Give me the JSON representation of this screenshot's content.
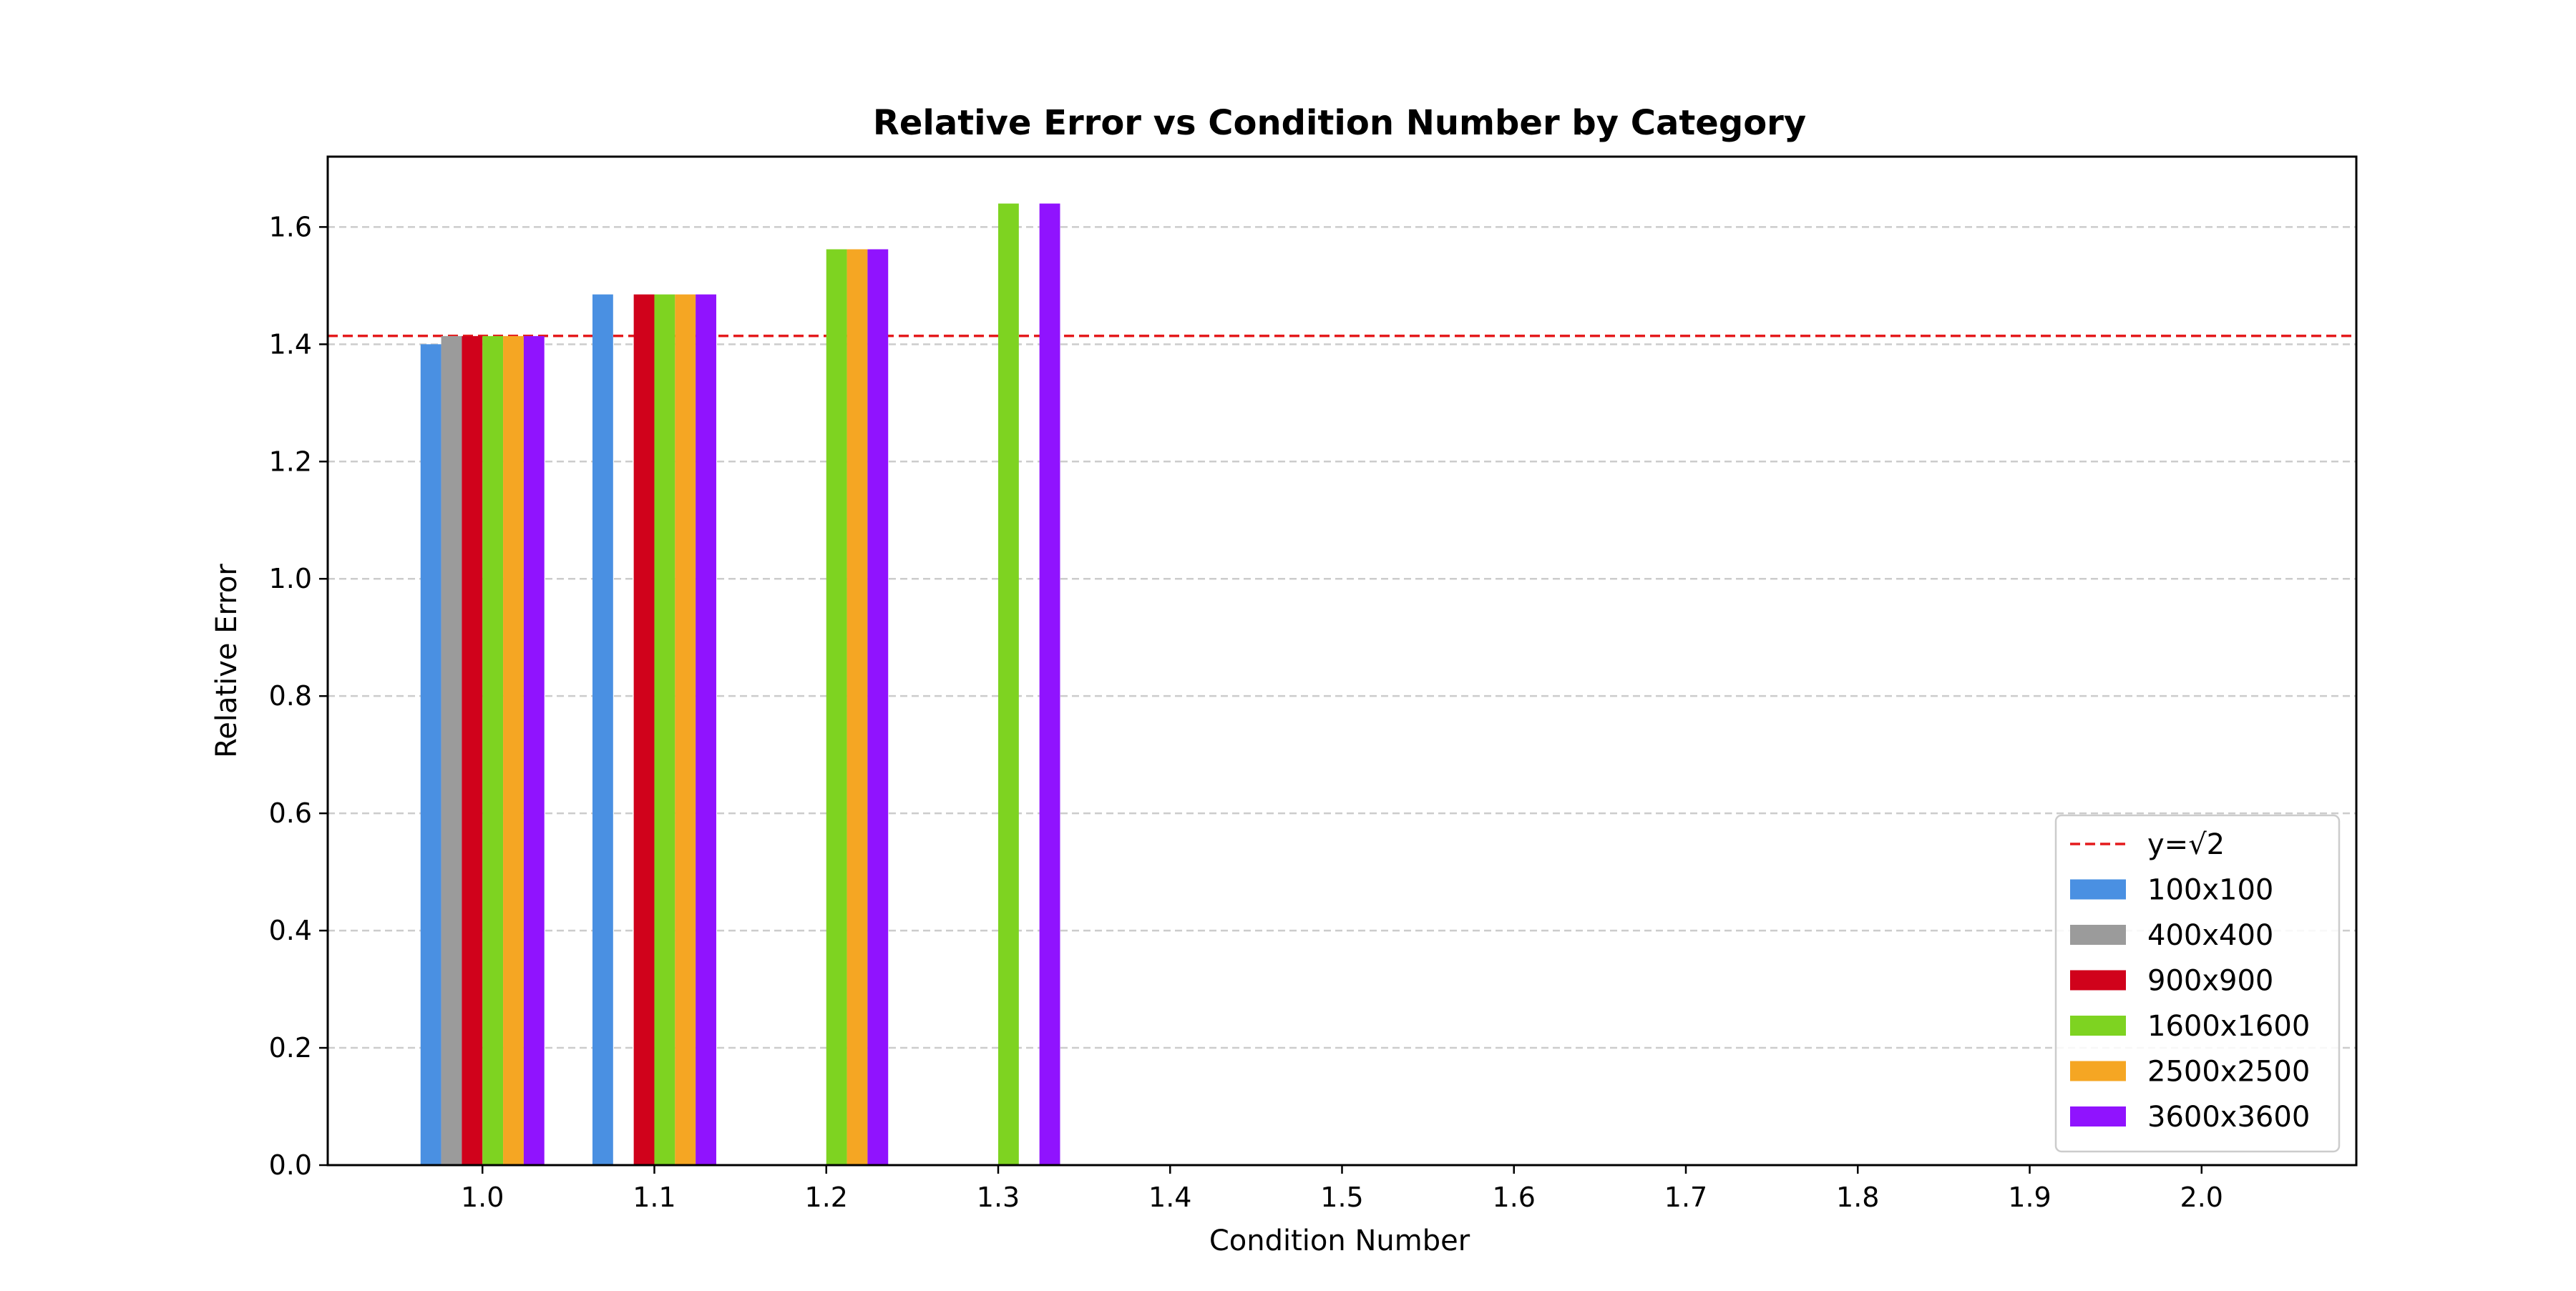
{
  "chart_data": {
    "type": "bar",
    "title": "Relative Error vs Condition Number by Category",
    "xlabel": "Condition Number",
    "ylabel": "Relative Error",
    "xlim": [
      0.91,
      2.09
    ],
    "ylim": [
      0.0,
      1.72
    ],
    "xticks": [
      "1.0",
      "1.1",
      "1.2",
      "1.3",
      "1.4",
      "1.5",
      "1.6",
      "1.7",
      "1.8",
      "1.9",
      "2.0"
    ],
    "yticks": [
      "0.0",
      "0.2",
      "0.4",
      "0.6",
      "0.8",
      "1.0",
      "1.2",
      "1.4",
      "1.6"
    ],
    "grid": "horizontal dashed",
    "legend_position": "lower-right",
    "bar_group_width": 0.072,
    "reference_line": {
      "label": "y=√2",
      "value": 1.4142,
      "color": "#e41a1c",
      "style": "dashed"
    },
    "series": [
      {
        "name": "100x100",
        "color": "#4a90e2",
        "x": [
          1.0,
          1.1
        ],
        "values": [
          1.4,
          1.485
        ]
      },
      {
        "name": "400x400",
        "color": "#9b9b9b",
        "x": [
          1.0
        ],
        "values": [
          1.414
        ]
      },
      {
        "name": "900x900",
        "color": "#d0021b",
        "x": [
          1.0,
          1.1
        ],
        "values": [
          1.414,
          1.485
        ]
      },
      {
        "name": "1600x1600",
        "color": "#7ed321",
        "x": [
          1.0,
          1.1,
          1.2,
          1.3
        ],
        "values": [
          1.414,
          1.485,
          1.562,
          1.64
        ]
      },
      {
        "name": "2500x2500",
        "color": "#f5a623",
        "x": [
          1.0,
          1.1,
          1.2
        ],
        "values": [
          1.414,
          1.485,
          1.562
        ]
      },
      {
        "name": "3600x3600",
        "color": "#9013fe",
        "x": [
          1.0,
          1.1,
          1.2,
          1.3
        ],
        "values": [
          1.414,
          1.485,
          1.562,
          1.64
        ]
      }
    ]
  }
}
